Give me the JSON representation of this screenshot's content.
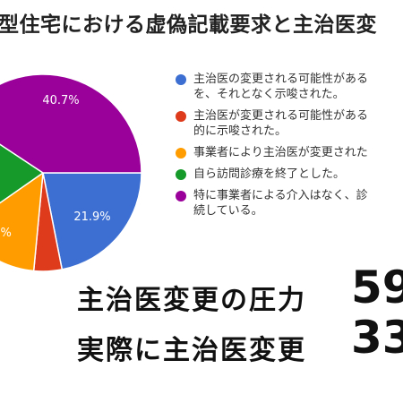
{
  "title": "型住宅における虚偽記載要求と主治医変",
  "chart_data": {
    "type": "pie",
    "slices": [
      {
        "label": "主治医の変更される可能性があるを、それとなく示唆された。",
        "value": 21.9,
        "color": "#3c6fd1",
        "data_label": "21.9%"
      },
      {
        "label": "主治医が変更される可能性がある的に示唆された。",
        "value": 4.6,
        "color": "#dd3b1c",
        "data_label": ""
      },
      {
        "label": "事業者により主治医が変更された",
        "value": 13.8,
        "color": "#ff9d00",
        "data_label": "%"
      },
      {
        "label": "自ら訪問診療を終了とした。",
        "value": 19.0,
        "color": "#169a2a",
        "data_label": ""
      },
      {
        "label": "特に事業者による介入はなく、診続している。",
        "value": 40.7,
        "color": "#9a009a",
        "data_label": "40.7%"
      }
    ]
  },
  "legend": [
    {
      "line1": "主治医の変更される可能性がある",
      "line2": "を、それとなく示唆された。",
      "color": "#3c6fd1"
    },
    {
      "line1": "主治医が変更される可能性がある",
      "line2": "的に示唆された。",
      "color": "#dd3b1c"
    },
    {
      "line1": "事業者により主治医が変更された",
      "line2": "",
      "color": "#ff9d00"
    },
    {
      "line1": "自ら訪問診療を終了とした。",
      "line2": "",
      "color": "#169a2a"
    },
    {
      "line1": "特に事業者による介入はなく、診",
      "line2": "続している。",
      "color": "#9a009a"
    }
  ],
  "stats": [
    {
      "label": "主治医変更の圧力",
      "value": "59"
    },
    {
      "label": "実際に主治医変更",
      "value": "33"
    }
  ]
}
